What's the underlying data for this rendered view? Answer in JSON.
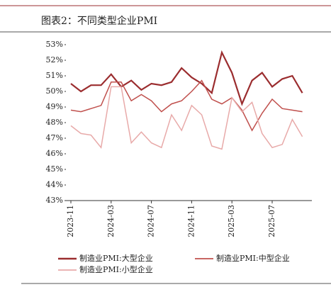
{
  "chart_data": {
    "type": "line",
    "title": "图表2：不同类型企业PMI",
    "categories": [
      "2023-11",
      null,
      null,
      null,
      "2024-03",
      null,
      null,
      null,
      "2024-07",
      null,
      null,
      null,
      "2024-11",
      null,
      null,
      null,
      "2025-03",
      null,
      null,
      null,
      "2025-07",
      null,
      null,
      null
    ],
    "series": [
      {
        "name": "制造业PMI:大型企业",
        "color": "#9b2d2f",
        "values": [
          50.5,
          50.0,
          50.4,
          50.4,
          51.1,
          50.3,
          50.7,
          50.1,
          50.5,
          50.4,
          50.6,
          51.5,
          50.9,
          50.5,
          49.9,
          52.5,
          51.2,
          49.2,
          50.7,
          51.2,
          50.3,
          50.8,
          51.0,
          49.9
        ]
      },
      {
        "name": "制造业PMI:中型企业",
        "color": "#c0504d",
        "values": [
          48.8,
          48.7,
          48.9,
          49.1,
          50.6,
          50.6,
          49.4,
          49.8,
          49.4,
          48.7,
          49.2,
          49.4,
          50.0,
          50.7,
          49.5,
          49.2,
          49.6,
          48.8,
          47.5,
          48.6,
          49.5,
          48.9,
          48.8,
          48.7
        ]
      },
      {
        "name": "制造业PMI:小型企业",
        "color": "#e8aaa9",
        "values": [
          47.8,
          47.3,
          47.2,
          46.4,
          50.3,
          50.3,
          46.7,
          47.4,
          46.7,
          46.4,
          48.5,
          47.5,
          49.1,
          48.5,
          46.5,
          46.3,
          49.6,
          48.7,
          49.3,
          47.3,
          46.4,
          46.6,
          48.2,
          47.1
        ]
      }
    ],
    "ylim": [
      43,
      53
    ],
    "yticks": [
      {
        "value": 43,
        "label": "43%"
      },
      {
        "value": 44,
        "label": "44%"
      },
      {
        "value": 45,
        "label": "45%"
      },
      {
        "value": 46,
        "label": "46%"
      },
      {
        "value": 47,
        "label": "47%"
      },
      {
        "value": 48,
        "label": "48%"
      },
      {
        "value": 49,
        "label": "49%"
      },
      {
        "value": 50,
        "label": "50%"
      },
      {
        "value": 51,
        "label": "51%"
      },
      {
        "value": 52,
        "label": "52%"
      },
      {
        "value": 53,
        "label": "53%"
      }
    ],
    "grid": false
  }
}
